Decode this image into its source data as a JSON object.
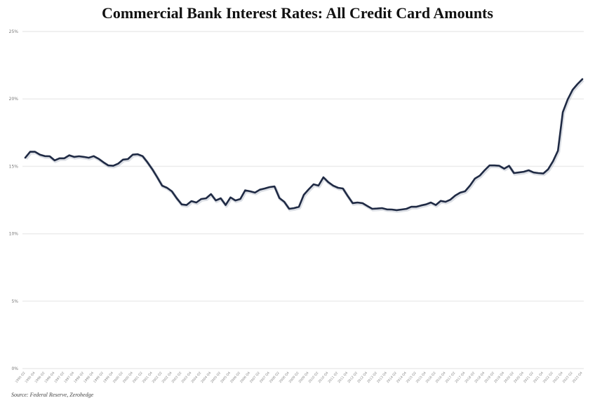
{
  "chart_data": {
    "type": "line",
    "title": "Commercial Bank Interest Rates: All Credit Card Amounts",
    "source": "Source: Federal Reserve, Zerohedge",
    "xlabel": "",
    "ylabel": "",
    "ylim": [
      0,
      25
    ],
    "yticks": [
      "0%",
      "5%",
      "10%",
      "15%",
      "20%",
      "25%"
    ],
    "grid": "horizontal",
    "legend": "none",
    "line_color": "#1f2a44",
    "x": [
      "1995 Q2",
      "1995 Q3",
      "1995 Q4",
      "1996 Q1",
      "1996 Q2",
      "1996 Q3",
      "1996 Q4",
      "1997 Q1",
      "1997 Q2",
      "1997 Q3",
      "1997 Q4",
      "1998 Q1",
      "1998 Q2",
      "1998 Q3",
      "1998 Q4",
      "1999 Q1",
      "1999 Q2",
      "1999 Q3",
      "1999 Q4",
      "2000 Q1",
      "2000 Q2",
      "2000 Q3",
      "2000 Q4",
      "2001 Q1",
      "2001 Q2",
      "2001 Q3",
      "2001 Q4",
      "2002 Q1",
      "2002 Q2",
      "2002 Q3",
      "2002 Q4",
      "2003 Q1",
      "2003 Q2",
      "2003 Q3",
      "2003 Q4",
      "2004 Q1",
      "2004 Q2",
      "2004 Q3",
      "2004 Q4",
      "2005 Q1",
      "2005 Q2",
      "2005 Q3",
      "2005 Q4",
      "2006 Q1",
      "2006 Q2",
      "2006 Q3",
      "2006 Q4",
      "2007 Q1",
      "2007 Q2",
      "2007 Q3",
      "2007 Q4",
      "2008 Q1",
      "2008 Q2",
      "2008 Q3",
      "2008 Q4",
      "2009 Q1",
      "2009 Q2",
      "2009 Q3",
      "2009 Q4",
      "2010 Q1",
      "2010 Q2",
      "2010 Q3",
      "2010 Q4",
      "2011 Q1",
      "2011 Q2",
      "2011 Q3",
      "2011 Q4",
      "2012 Q1",
      "2012 Q2",
      "2012 Q3",
      "2012 Q4",
      "2013 Q1",
      "2013 Q2",
      "2013 Q3",
      "2013 Q4",
      "2014 Q1",
      "2014 Q2",
      "2014 Q3",
      "2014 Q4",
      "2015 Q1",
      "2015 Q2",
      "2015 Q3",
      "2015 Q4",
      "2016 Q1",
      "2016 Q2",
      "2016 Q3",
      "2016 Q4",
      "2017 Q1",
      "2017 Q2",
      "2017 Q3",
      "2017 Q4",
      "2018 Q1",
      "2018 Q2",
      "2018 Q3",
      "2018 Q4",
      "2019 Q1",
      "2019 Q2",
      "2019 Q3",
      "2019 Q4",
      "2020 Q1",
      "2020 Q2",
      "2020 Q3",
      "2020 Q4",
      "2021 Q1",
      "2021 Q2",
      "2021 Q3",
      "2021 Q4",
      "2022 Q1",
      "2022 Q2",
      "2022 Q3",
      "2022 Q4",
      "2023 Q1",
      "2023 Q2",
      "2023 Q3",
      "2023 Q4"
    ],
    "values": [
      15.64,
      16.08,
      16.08,
      15.87,
      15.76,
      15.75,
      15.44,
      15.6,
      15.6,
      15.82,
      15.7,
      15.75,
      15.7,
      15.64,
      15.76,
      15.56,
      15.3,
      15.07,
      15.04,
      15.2,
      15.5,
      15.54,
      15.87,
      15.9,
      15.76,
      15.3,
      14.78,
      14.19,
      13.57,
      13.41,
      13.15,
      12.63,
      12.18,
      12.13,
      12.42,
      12.32,
      12.58,
      12.63,
      12.94,
      12.47,
      12.63,
      12.13,
      12.7,
      12.47,
      12.58,
      13.22,
      13.15,
      13.05,
      13.27,
      13.36,
      13.46,
      13.51,
      12.65,
      12.37,
      11.85,
      11.9,
      12.0,
      12.89,
      13.3,
      13.67,
      13.57,
      14.19,
      13.83,
      13.57,
      13.41,
      13.36,
      12.79,
      12.27,
      12.32,
      12.27,
      12.06,
      11.85,
      11.87,
      11.9,
      11.81,
      11.8,
      11.75,
      11.8,
      11.85,
      12.0,
      12.0,
      12.1,
      12.18,
      12.32,
      12.13,
      12.44,
      12.37,
      12.53,
      12.84,
      13.05,
      13.15,
      13.57,
      14.09,
      14.31,
      14.71,
      15.07,
      15.07,
      15.04,
      14.83,
      15.04,
      14.5,
      14.55,
      14.6,
      14.71,
      14.55,
      14.5,
      14.47,
      14.78,
      15.38,
      16.16,
      19.02,
      19.97,
      20.68,
      21.1,
      21.47
    ]
  }
}
